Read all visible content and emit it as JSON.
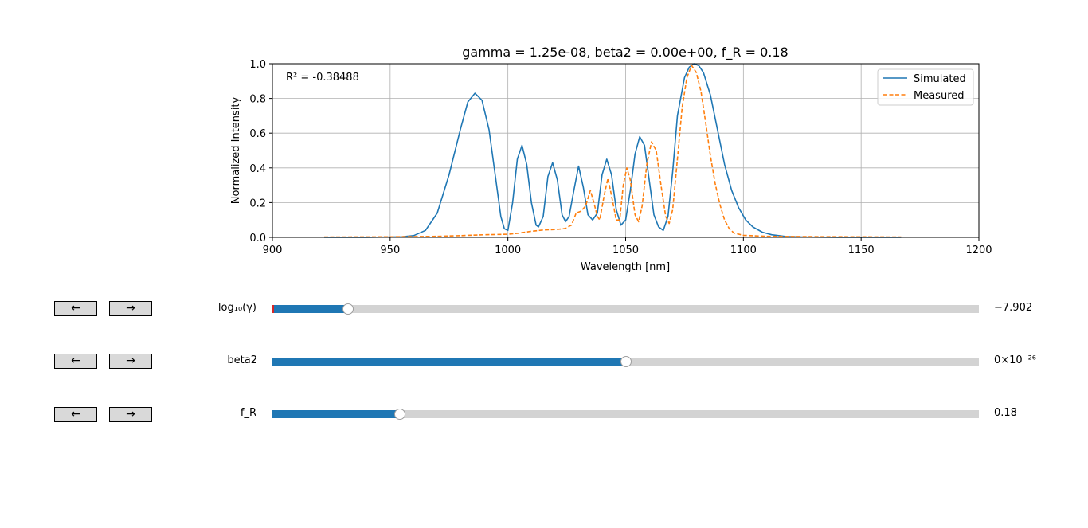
{
  "chart_data": {
    "type": "line",
    "title": "gamma = 1.25e-08, beta2 = 0.00e+00, f_R = 0.18",
    "xlabel": "Wavelength [nm]",
    "ylabel": "Normalized Intensity",
    "xlim": [
      900,
      1200
    ],
    "ylim": [
      0,
      1.0
    ],
    "xticks": [
      900,
      950,
      1000,
      1050,
      1100,
      1150,
      1200
    ],
    "xtick_labels": [
      "900",
      "950",
      "1000",
      "1050",
      "1100",
      "1150",
      "1200"
    ],
    "yticks": [
      0,
      0.2,
      0.4,
      0.6,
      0.8,
      1.0
    ],
    "ytick_labels": [
      "0.0",
      "0.2",
      "0.4",
      "0.6",
      "0.8",
      "1.0"
    ],
    "grid": true,
    "legend_position": "top-right",
    "annotation": "R² = -0.38488",
    "series": [
      {
        "name": "Simulated",
        "color": "#1f77b4",
        "style": "solid",
        "points": [
          [
            922,
            0.0
          ],
          [
            940,
            0.0
          ],
          [
            955,
            0.003
          ],
          [
            960,
            0.01
          ],
          [
            965,
            0.04
          ],
          [
            970,
            0.14
          ],
          [
            975,
            0.36
          ],
          [
            980,
            0.63
          ],
          [
            983,
            0.78
          ],
          [
            986,
            0.83
          ],
          [
            989,
            0.79
          ],
          [
            992,
            0.62
          ],
          [
            995,
            0.32
          ],
          [
            997,
            0.12
          ],
          [
            998.5,
            0.05
          ],
          [
            1000,
            0.04
          ],
          [
            1002,
            0.2
          ],
          [
            1004,
            0.45
          ],
          [
            1006,
            0.53
          ],
          [
            1008,
            0.42
          ],
          [
            1010,
            0.2
          ],
          [
            1012,
            0.07
          ],
          [
            1013,
            0.06
          ],
          [
            1015,
            0.12
          ],
          [
            1017,
            0.35
          ],
          [
            1019,
            0.43
          ],
          [
            1021,
            0.33
          ],
          [
            1023,
            0.13
          ],
          [
            1024.5,
            0.09
          ],
          [
            1026,
            0.12
          ],
          [
            1028,
            0.27
          ],
          [
            1030,
            0.41
          ],
          [
            1032,
            0.29
          ],
          [
            1034,
            0.13
          ],
          [
            1036,
            0.1
          ],
          [
            1038,
            0.14
          ],
          [
            1040,
            0.36
          ],
          [
            1042,
            0.45
          ],
          [
            1044,
            0.36
          ],
          [
            1046,
            0.16
          ],
          [
            1048,
            0.07
          ],
          [
            1050,
            0.1
          ],
          [
            1052,
            0.27
          ],
          [
            1054,
            0.48
          ],
          [
            1056,
            0.58
          ],
          [
            1058,
            0.53
          ],
          [
            1060,
            0.33
          ],
          [
            1062,
            0.13
          ],
          [
            1064,
            0.06
          ],
          [
            1066,
            0.04
          ],
          [
            1068,
            0.12
          ],
          [
            1070,
            0.38
          ],
          [
            1072,
            0.7
          ],
          [
            1075,
            0.92
          ],
          [
            1077,
            0.98
          ],
          [
            1079,
            1.0
          ],
          [
            1081,
            0.99
          ],
          [
            1083,
            0.95
          ],
          [
            1086,
            0.82
          ],
          [
            1089,
            0.62
          ],
          [
            1092,
            0.42
          ],
          [
            1095,
            0.27
          ],
          [
            1098,
            0.17
          ],
          [
            1101,
            0.1
          ],
          [
            1104,
            0.06
          ],
          [
            1108,
            0.03
          ],
          [
            1112,
            0.015
          ],
          [
            1118,
            0.005
          ],
          [
            1125,
            0.002
          ],
          [
            1140,
            0.0
          ],
          [
            1167,
            0.0
          ]
        ]
      },
      {
        "name": "Measured",
        "color": "#ff7f0e",
        "style": "dashed",
        "points": [
          [
            922,
            0.002
          ],
          [
            950,
            0.003
          ],
          [
            970,
            0.006
          ],
          [
            980,
            0.01
          ],
          [
            990,
            0.015
          ],
          [
            1000,
            0.018
          ],
          [
            1005,
            0.025
          ],
          [
            1010,
            0.035
          ],
          [
            1015,
            0.042
          ],
          [
            1020,
            0.045
          ],
          [
            1024,
            0.05
          ],
          [
            1027,
            0.07
          ],
          [
            1029,
            0.14
          ],
          [
            1031,
            0.15
          ],
          [
            1033,
            0.18
          ],
          [
            1035,
            0.27
          ],
          [
            1036.5,
            0.2
          ],
          [
            1038,
            0.12
          ],
          [
            1039,
            0.1
          ],
          [
            1041,
            0.25
          ],
          [
            1042.5,
            0.34
          ],
          [
            1044,
            0.24
          ],
          [
            1046,
            0.1
          ],
          [
            1047.5,
            0.1
          ],
          [
            1049,
            0.3
          ],
          [
            1050.5,
            0.4
          ],
          [
            1052,
            0.33
          ],
          [
            1054,
            0.13
          ],
          [
            1055.5,
            0.09
          ],
          [
            1057,
            0.18
          ],
          [
            1059,
            0.42
          ],
          [
            1061,
            0.55
          ],
          [
            1063,
            0.5
          ],
          [
            1065,
            0.3
          ],
          [
            1067,
            0.12
          ],
          [
            1068.5,
            0.08
          ],
          [
            1070,
            0.16
          ],
          [
            1072,
            0.45
          ],
          [
            1074,
            0.75
          ],
          [
            1076,
            0.92
          ],
          [
            1078,
            0.99
          ],
          [
            1080,
            0.95
          ],
          [
            1082,
            0.84
          ],
          [
            1084,
            0.66
          ],
          [
            1086,
            0.47
          ],
          [
            1088,
            0.31
          ],
          [
            1090,
            0.19
          ],
          [
            1092,
            0.1
          ],
          [
            1094,
            0.05
          ],
          [
            1096,
            0.025
          ],
          [
            1100,
            0.012
          ],
          [
            1110,
            0.006
          ],
          [
            1130,
            0.004
          ],
          [
            1150,
            0.003
          ],
          [
            1167,
            0.002
          ]
        ]
      }
    ]
  },
  "controls": {
    "prev_label": "←",
    "next_label": "→",
    "sliders": [
      {
        "label": "log₁₀(γ)",
        "value_text": "−7.902",
        "fraction": 0.107
      },
      {
        "label": "beta2",
        "value_text": "0×10⁻²⁶",
        "fraction": 0.5
      },
      {
        "label": "f_R",
        "value_text": "0.18",
        "fraction": 0.18
      }
    ]
  },
  "colors": {
    "slider_fill": "#1f77b4",
    "slider_track": "#d3d3d3",
    "button_bg": "#d9d9d9",
    "grid": "#b0b0b0"
  }
}
